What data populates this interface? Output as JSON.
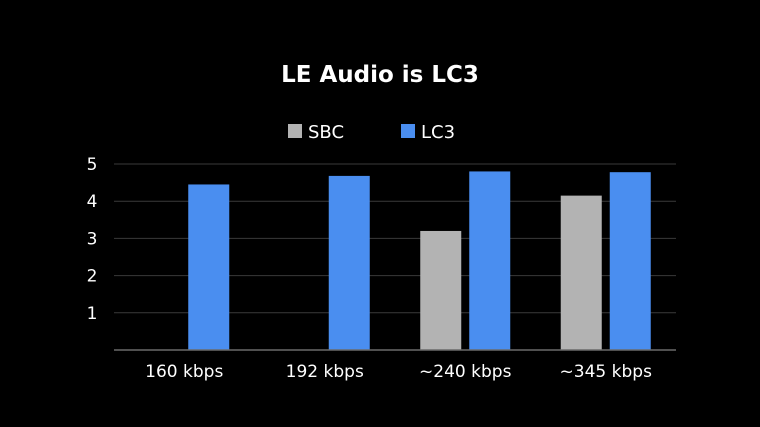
{
  "chart_data": {
    "type": "bar",
    "title": "LE Audio is LC3",
    "xlabel": "",
    "ylabel": "",
    "categories": [
      "160 kbps",
      "192 kbps",
      "~240 kbps",
      "~345 kbps"
    ],
    "series": [
      {
        "name": "SBC",
        "color": "#b3b3b3",
        "values": [
          null,
          null,
          3.2,
          4.15
        ]
      },
      {
        "name": "LC3",
        "color": "#4a8ef0",
        "values": [
          4.45,
          4.68,
          4.8,
          4.78
        ]
      }
    ],
    "ylim": [
      0,
      5
    ],
    "yticks": [
      1,
      2,
      3,
      4,
      5
    ],
    "grid": true,
    "legend": "top-center"
  }
}
